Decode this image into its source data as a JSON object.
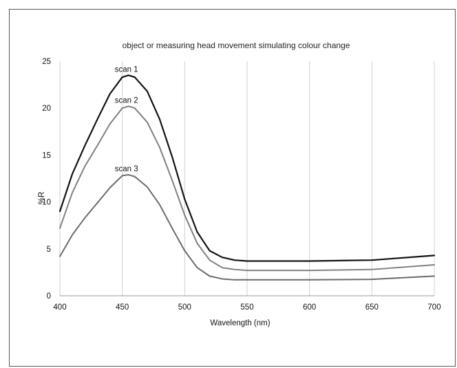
{
  "chart_data": {
    "type": "line",
    "title": "object or measuring head movement simulating colour change",
    "xlabel": "Wavelength (nm)",
    "ylabel": "%R",
    "xlim": [
      400,
      700
    ],
    "ylim": [
      0,
      25
    ],
    "xticks": [
      400,
      450,
      500,
      550,
      600,
      650,
      700
    ],
    "yticks": [
      0,
      5,
      10,
      15,
      20,
      25
    ],
    "grid": "vertical lines on",
    "legend": "none",
    "series": [
      {
        "name": "scan 1",
        "color": "#111111",
        "x": [
          400,
          410,
          420,
          430,
          440,
          450,
          455,
          460,
          470,
          480,
          490,
          500,
          510,
          520,
          530,
          540,
          550,
          600,
          650,
          700
        ],
        "y": [
          9.0,
          13.0,
          16.0,
          18.8,
          21.5,
          23.3,
          23.5,
          23.3,
          21.8,
          18.8,
          14.8,
          10.3,
          6.8,
          4.8,
          4.1,
          3.8,
          3.7,
          3.7,
          3.8,
          4.3
        ]
      },
      {
        "name": "scan 2",
        "color": "#7f7f7f",
        "x": [
          400,
          410,
          420,
          430,
          440,
          450,
          455,
          460,
          470,
          480,
          490,
          500,
          510,
          520,
          530,
          540,
          550,
          600,
          650,
          700
        ],
        "y": [
          7.2,
          11.0,
          13.8,
          16.0,
          18.3,
          20.0,
          20.2,
          20.0,
          18.5,
          15.8,
          12.3,
          8.6,
          5.6,
          3.8,
          3.0,
          2.8,
          2.7,
          2.7,
          2.8,
          3.3
        ]
      },
      {
        "name": "scan 3",
        "color": "#6a6a6a",
        "x": [
          400,
          410,
          420,
          430,
          440,
          450,
          455,
          460,
          470,
          480,
          490,
          500,
          510,
          520,
          530,
          540,
          550,
          600,
          650,
          700
        ],
        "y": [
          4.2,
          6.5,
          8.3,
          9.9,
          11.5,
          12.8,
          12.9,
          12.7,
          11.6,
          9.7,
          7.2,
          4.8,
          3.0,
          2.1,
          1.8,
          1.7,
          1.7,
          1.7,
          1.75,
          2.1
        ]
      }
    ]
  },
  "colors": {
    "grid": "#d0d0d0",
    "axis": "#999999",
    "frame": "#555555"
  }
}
